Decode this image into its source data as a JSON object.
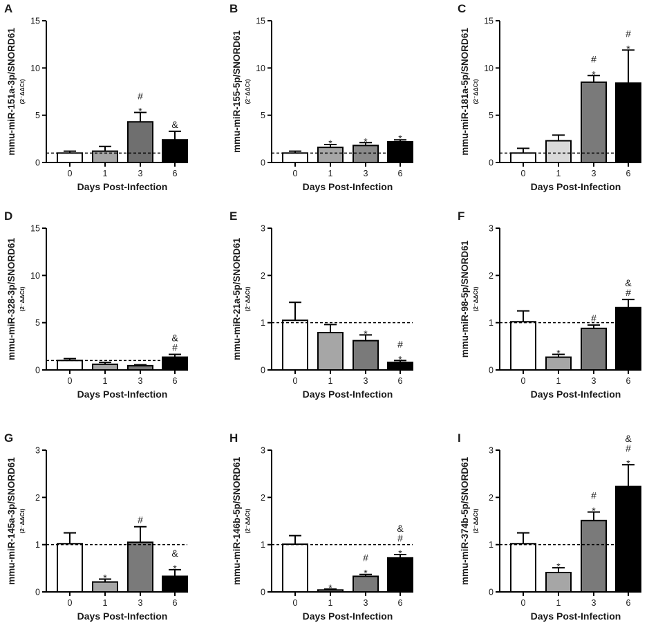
{
  "figure": {
    "panels": [
      {
        "letter": "A",
        "ylabel": "mmu-miR-151a-3p/SNORD61",
        "ysub": "(2⁻ΔΔCt)"
      },
      {
        "letter": "B",
        "ylabel": "mmu-miR-155-5p/SNORD61",
        "ysub": "(2⁻ΔΔCt)"
      },
      {
        "letter": "C",
        "ylabel": "mmu-miR-181a-5p/SNORD61",
        "ysub": "(2⁻ΔΔCt)"
      },
      {
        "letter": "D",
        "ylabel": "mmu-miR-328-3p/SNORD61",
        "ysub": "(2⁻ΔΔCt)"
      },
      {
        "letter": "E",
        "ylabel": "mmu-miR-21a-5p/SNORD61",
        "ysub": "(2⁻ΔΔCt)"
      },
      {
        "letter": "F",
        "ylabel": "mmu-miR-98-5p/SNORD61",
        "ysub": "(2⁻ΔΔCt)"
      },
      {
        "letter": "G",
        "ylabel": "mmu-miR-145a-3p/SNORD61",
        "ysub": "(2⁻ΔΔCt)"
      },
      {
        "letter": "H",
        "ylabel": "mmu-miR-146b-5p/SNORD61",
        "ysub": "(2⁻ΔΔCt)"
      },
      {
        "letter": "I",
        "ylabel": "mmu-miR-374b-5p/SNORD61",
        "ysub": "(2⁻ΔΔCt)"
      }
    ]
  },
  "chart_data": [
    {
      "panel": "A",
      "type": "bar",
      "title": "",
      "xlabel": "Days Post-Infection",
      "ylabel": "mmu-miR-151a-3p/SNORD61",
      "categories": [
        "0",
        "1",
        "3",
        "6"
      ],
      "values": [
        1.0,
        1.2,
        4.3,
        2.4
      ],
      "errors": [
        0.2,
        0.5,
        1.0,
        0.9
      ],
      "annotations": [
        [],
        [],
        [
          "#",
          "*"
        ],
        [
          "&"
        ]
      ],
      "bar_colors": [
        "#ffffff",
        "#a6a6a6",
        "#6f6f6f",
        "#000000"
      ],
      "ylim": [
        0,
        15
      ],
      "yticks": [
        "0",
        "5",
        "10",
        "15"
      ],
      "reference_line": 1
    },
    {
      "panel": "B",
      "type": "bar",
      "title": "",
      "xlabel": "Days Post-Infection",
      "ylabel": "mmu-miR-155-5p/SNORD61",
      "categories": [
        "0",
        "1",
        "3",
        "6"
      ],
      "values": [
        1.0,
        1.6,
        1.8,
        2.2
      ],
      "errors": [
        0.2,
        0.3,
        0.3,
        0.2
      ],
      "annotations": [
        [],
        [
          "*"
        ],
        [
          "*"
        ],
        [
          "*"
        ]
      ],
      "bar_colors": [
        "#ffffff",
        "#a6a6a6",
        "#8a8a8a",
        "#000000"
      ],
      "ylim": [
        0,
        15
      ],
      "yticks": [
        "0",
        "5",
        "10",
        "15"
      ],
      "reference_line": 1
    },
    {
      "panel": "C",
      "type": "bar",
      "title": "",
      "xlabel": "Days Post-Infection",
      "ylabel": "mmu-miR-181a-5p/SNORD61",
      "categories": [
        "0",
        "1",
        "3",
        "6"
      ],
      "values": [
        1.0,
        2.3,
        8.5,
        8.4
      ],
      "errors": [
        0.5,
        0.6,
        0.7,
        3.5
      ],
      "annotations": [
        [],
        [],
        [
          "#",
          "*"
        ],
        [
          "#",
          "*"
        ]
      ],
      "bar_colors": [
        "#ffffff",
        "#d9d9d9",
        "#7a7a7a",
        "#000000"
      ],
      "ylim": [
        0,
        15
      ],
      "yticks": [
        "0",
        "5",
        "10",
        "15"
      ],
      "reference_line": 1
    },
    {
      "panel": "D",
      "type": "bar",
      "title": "",
      "xlabel": "Days Post-Infection",
      "ylabel": "mmu-miR-328-3p/SNORD61",
      "categories": [
        "0",
        "1",
        "3",
        "6"
      ],
      "values": [
        1.0,
        0.6,
        0.45,
        1.35
      ],
      "errors": [
        0.2,
        0.2,
        0.1,
        0.3
      ],
      "annotations": [
        [],
        [],
        [],
        [
          "&",
          "#"
        ]
      ],
      "bar_colors": [
        "#ffffff",
        "#a6a6a6",
        "#7a7a7a",
        "#000000"
      ],
      "ylim": [
        0,
        15
      ],
      "yticks": [
        "0",
        "5",
        "10",
        "15"
      ],
      "reference_line": 1
    },
    {
      "panel": "E",
      "type": "bar",
      "title": "",
      "xlabel": "Days Post-Infection",
      "ylabel": "mmu-miR-21a-5p/SNORD61",
      "categories": [
        "0",
        "1",
        "3",
        "6"
      ],
      "values": [
        1.05,
        0.79,
        0.62,
        0.16
      ],
      "errors": [
        0.38,
        0.17,
        0.12,
        0.04
      ],
      "annotations": [
        [],
        [],
        [
          "*"
        ],
        [
          "#",
          "*"
        ]
      ],
      "bar_colors": [
        "#ffffff",
        "#a6a6a6",
        "#7a7a7a",
        "#000000"
      ],
      "ylim": [
        0,
        3
      ],
      "yticks": [
        "0",
        "1",
        "2",
        "3"
      ],
      "reference_line": 1
    },
    {
      "panel": "F",
      "type": "bar",
      "title": "",
      "xlabel": "Days Post-Infection",
      "ylabel": "mmu-miR-98-5p/SNORD61",
      "categories": [
        "0",
        "1",
        "3",
        "6"
      ],
      "values": [
        1.02,
        0.27,
        0.88,
        1.32
      ],
      "errors": [
        0.23,
        0.06,
        0.07,
        0.17
      ],
      "annotations": [
        [],
        [
          "*"
        ],
        [
          "#"
        ],
        [
          "&",
          "#"
        ]
      ],
      "bar_colors": [
        "#ffffff",
        "#a6a6a6",
        "#7a7a7a",
        "#000000"
      ],
      "ylim": [
        0,
        3
      ],
      "yticks": [
        "0",
        "1",
        "2",
        "3"
      ],
      "reference_line": 1
    },
    {
      "panel": "G",
      "type": "bar",
      "title": "",
      "xlabel": "Days Post-Infection",
      "ylabel": "mmu-miR-145a-3p/SNORD61",
      "categories": [
        "0",
        "1",
        "3",
        "6"
      ],
      "values": [
        1.02,
        0.21,
        1.05,
        0.33
      ],
      "errors": [
        0.23,
        0.06,
        0.33,
        0.14
      ],
      "annotations": [
        [],
        [
          "*"
        ],
        [
          "#"
        ],
        [
          "&",
          "*"
        ]
      ],
      "bar_colors": [
        "#ffffff",
        "#a6a6a6",
        "#7a7a7a",
        "#000000"
      ],
      "ylim": [
        0,
        3
      ],
      "yticks": [
        "0",
        "1",
        "2",
        "3"
      ],
      "reference_line": 1
    },
    {
      "panel": "H",
      "type": "bar",
      "title": "",
      "xlabel": "Days Post-Infection",
      "ylabel": "mmu-miR-146b-5p/SNORD61",
      "categories": [
        "0",
        "1",
        "3",
        "6"
      ],
      "values": [
        1.01,
        0.04,
        0.33,
        0.72
      ],
      "errors": [
        0.18,
        0.02,
        0.04,
        0.07
      ],
      "annotations": [
        [],
        [
          "*"
        ],
        [
          "#",
          "*"
        ],
        [
          "&",
          "#",
          "*"
        ]
      ],
      "bar_colors": [
        "#ffffff",
        "#a6a6a6",
        "#7a7a7a",
        "#000000"
      ],
      "ylim": [
        0,
        3
      ],
      "yticks": [
        "0",
        "1",
        "2",
        "3"
      ],
      "reference_line": 1
    },
    {
      "panel": "I",
      "type": "bar",
      "title": "",
      "xlabel": "Days Post-Infection",
      "ylabel": "mmu-miR-374b-5p/SNORD61",
      "categories": [
        "0",
        "1",
        "3",
        "6"
      ],
      "values": [
        1.02,
        0.41,
        1.51,
        2.23
      ],
      "errors": [
        0.23,
        0.1,
        0.18,
        0.46
      ],
      "annotations": [
        [],
        [
          "*"
        ],
        [
          "#",
          "*"
        ],
        [
          "&",
          "#",
          "*"
        ]
      ],
      "bar_colors": [
        "#ffffff",
        "#a6a6a6",
        "#7a7a7a",
        "#000000"
      ],
      "ylim": [
        0,
        3
      ],
      "yticks": [
        "0",
        "1",
        "2",
        "3"
      ],
      "reference_line": 1
    }
  ]
}
